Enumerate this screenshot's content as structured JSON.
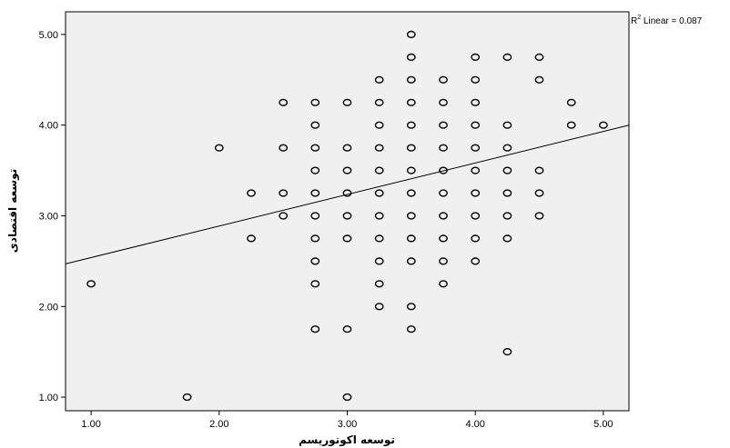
{
  "chart_data": {
    "type": "scatter",
    "xlabel": "توسعه اکوتوریسم",
    "ylabel": "توسعه اقتصادی",
    "xlim": [
      0.8,
      5.2
    ],
    "ylim": [
      0.85,
      5.25
    ],
    "xticks": [
      "1.00",
      "2.00",
      "3.00",
      "4.00",
      "5.00"
    ],
    "yticks": [
      "1.00",
      "2.00",
      "3.00",
      "4.00",
      "5.00"
    ],
    "grid": false,
    "fit_label": {
      "prefix": "R",
      "sup": "2",
      "text": " Linear = 0.087"
    },
    "fit_line": {
      "x": [
        0.8,
        5.2
      ],
      "y": [
        2.47,
        4.0
      ]
    },
    "points": [
      [
        1.0,
        2.25
      ],
      [
        1.75,
        1.0
      ],
      [
        2.0,
        3.75
      ],
      [
        2.25,
        3.25
      ],
      [
        2.25,
        2.75
      ],
      [
        2.5,
        4.25
      ],
      [
        2.5,
        3.75
      ],
      [
        2.5,
        3.25
      ],
      [
        2.5,
        3.0
      ],
      [
        2.75,
        4.25
      ],
      [
        2.75,
        4.0
      ],
      [
        2.75,
        3.75
      ],
      [
        2.75,
        3.5
      ],
      [
        2.75,
        3.25
      ],
      [
        2.75,
        3.0
      ],
      [
        2.75,
        2.75
      ],
      [
        2.75,
        2.5
      ],
      [
        2.75,
        2.25
      ],
      [
        2.75,
        1.75
      ],
      [
        3.0,
        4.25
      ],
      [
        3.0,
        3.75
      ],
      [
        3.0,
        3.5
      ],
      [
        3.0,
        3.25
      ],
      [
        3.0,
        3.0
      ],
      [
        3.0,
        2.75
      ],
      [
        3.0,
        1.75
      ],
      [
        3.0,
        1.0
      ],
      [
        3.25,
        4.5
      ],
      [
        3.25,
        4.25
      ],
      [
        3.25,
        4.0
      ],
      [
        3.25,
        3.75
      ],
      [
        3.25,
        3.5
      ],
      [
        3.25,
        3.25
      ],
      [
        3.25,
        3.0
      ],
      [
        3.25,
        2.75
      ],
      [
        3.25,
        2.5
      ],
      [
        3.25,
        2.25
      ],
      [
        3.25,
        2.0
      ],
      [
        3.5,
        5.0
      ],
      [
        3.5,
        4.75
      ],
      [
        3.5,
        4.5
      ],
      [
        3.5,
        4.25
      ],
      [
        3.5,
        4.0
      ],
      [
        3.5,
        3.75
      ],
      [
        3.5,
        3.5
      ],
      [
        3.5,
        3.25
      ],
      [
        3.5,
        3.0
      ],
      [
        3.5,
        2.75
      ],
      [
        3.5,
        2.5
      ],
      [
        3.5,
        2.0
      ],
      [
        3.5,
        1.75
      ],
      [
        3.75,
        4.5
      ],
      [
        3.75,
        4.25
      ],
      [
        3.75,
        4.0
      ],
      [
        3.75,
        3.75
      ],
      [
        3.75,
        3.5
      ],
      [
        3.75,
        3.25
      ],
      [
        3.75,
        3.0
      ],
      [
        3.75,
        2.75
      ],
      [
        3.75,
        2.5
      ],
      [
        3.75,
        2.25
      ],
      [
        4.0,
        4.75
      ],
      [
        4.0,
        4.5
      ],
      [
        4.0,
        4.25
      ],
      [
        4.0,
        4.0
      ],
      [
        4.0,
        3.75
      ],
      [
        4.0,
        3.5
      ],
      [
        4.0,
        3.25
      ],
      [
        4.0,
        3.0
      ],
      [
        4.0,
        2.75
      ],
      [
        4.0,
        2.5
      ],
      [
        4.25,
        4.75
      ],
      [
        4.25,
        4.0
      ],
      [
        4.25,
        3.75
      ],
      [
        4.25,
        3.5
      ],
      [
        4.25,
        3.25
      ],
      [
        4.25,
        3.0
      ],
      [
        4.25,
        2.75
      ],
      [
        4.25,
        1.5
      ],
      [
        4.5,
        4.75
      ],
      [
        4.5,
        4.5
      ],
      [
        4.5,
        3.5
      ],
      [
        4.5,
        3.25
      ],
      [
        4.5,
        3.0
      ],
      [
        4.75,
        4.25
      ],
      [
        4.75,
        4.0
      ],
      [
        5.0,
        4.0
      ]
    ]
  }
}
